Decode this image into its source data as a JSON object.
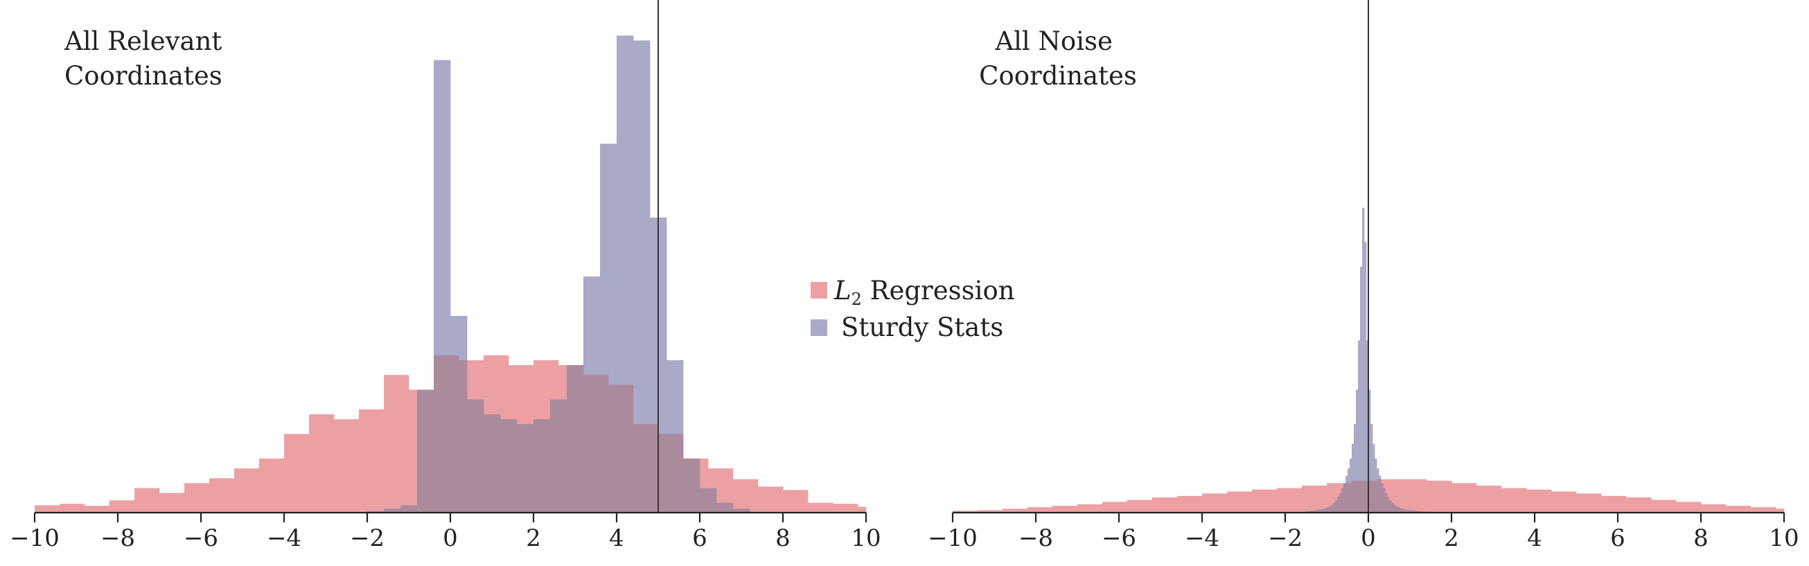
{
  "chart_data": [
    {
      "type": "bar",
      "panel": "left",
      "title_lines": [
        "All Relevant",
        "Coordinates"
      ],
      "xlabel": "",
      "ylabel": "",
      "xlim": [
        -10,
        10
      ],
      "ylim": [
        0,
        1
      ],
      "x_ticks": [
        -10,
        -8,
        -6,
        -4,
        -2,
        0,
        2,
        4,
        6,
        8,
        10
      ],
      "x_tick_labels": [
        "−10",
        "−8",
        "−6",
        "−4",
        "−2",
        "0",
        "2",
        "4",
        "6",
        "8",
        "10"
      ],
      "reference_x": 5,
      "grid": false,
      "series": [
        {
          "name": "L2 Regression",
          "color": "#eda0a3",
          "bin_width": 0.6,
          "bin_start": -10,
          "values": [
            0.015,
            0.018,
            0.014,
            0.025,
            0.05,
            0.04,
            0.06,
            0.07,
            0.09,
            0.11,
            0.16,
            0.2,
            0.19,
            0.21,
            0.28,
            0.25,
            0.32,
            0.31,
            0.32,
            0.3,
            0.31,
            0.3,
            0.28,
            0.26,
            0.18,
            0.16,
            0.11,
            0.09,
            0.068,
            0.053,
            0.046,
            0.02,
            0.018,
            0.012
          ]
        },
        {
          "name": "Sturdy Stats",
          "color": "#a9a9c8",
          "bin_width": 0.4,
          "bin_start": -2,
          "values": [
            0.003,
            0.008,
            0.015,
            0.25,
            0.92,
            0.4,
            0.23,
            0.2,
            0.19,
            0.18,
            0.19,
            0.23,
            0.3,
            0.48,
            0.75,
            0.97,
            0.96,
            0.6,
            0.31,
            0.11,
            0.05,
            0.02,
            0.008
          ]
        }
      ],
      "legend": {
        "placement": "right",
        "items": [
          "L2 Regression",
          "Sturdy Stats"
        ]
      }
    },
    {
      "type": "bar",
      "panel": "right",
      "title_lines": [
        "All Noise",
        "Coordinates"
      ],
      "xlabel": "",
      "ylabel": "",
      "xlim": [
        -10,
        10
      ],
      "ylim": [
        0,
        1
      ],
      "x_ticks": [
        -10,
        -8,
        -6,
        -4,
        -2,
        0,
        2,
        4,
        6,
        8,
        10
      ],
      "x_tick_labels": [
        "−10",
        "−8",
        "−6",
        "−4",
        "−2",
        "0",
        "2",
        "4",
        "6",
        "8",
        "10"
      ],
      "reference_x": 0,
      "grid": false,
      "series": [
        {
          "name": "L2 Regression",
          "color": "#eda0a3",
          "bin_width": 0.6,
          "bin_start": -10,
          "values": [
            0.004,
            0.005,
            0.008,
            0.011,
            0.014,
            0.017,
            0.022,
            0.026,
            0.031,
            0.034,
            0.039,
            0.043,
            0.047,
            0.05,
            0.055,
            0.06,
            0.065,
            0.068,
            0.068,
            0.065,
            0.06,
            0.055,
            0.05,
            0.047,
            0.043,
            0.039,
            0.034,
            0.031,
            0.026,
            0.022,
            0.017,
            0.014,
            0.011,
            0.008
          ]
        },
        {
          "name": "Sturdy Stats",
          "color": "#a9a9c8",
          "bin_width": 0.05,
          "bin_start": -1.5,
          "values": [
            0.003,
            0.003,
            0.004,
            0.004,
            0.005,
            0.005,
            0.006,
            0.007,
            0.008,
            0.009,
            0.011,
            0.013,
            0.016,
            0.02,
            0.025,
            0.032,
            0.04,
            0.05,
            0.06,
            0.075,
            0.09,
            0.11,
            0.14,
            0.18,
            0.25,
            0.35,
            0.5,
            0.62,
            0.55,
            0.35,
            0.25,
            0.18,
            0.14,
            0.11,
            0.09,
            0.075,
            0.06,
            0.05,
            0.04,
            0.032,
            0.025,
            0.02,
            0.016,
            0.013,
            0.011,
            0.009,
            0.008,
            0.007,
            0.006,
            0.005,
            0.005,
            0.004,
            0.004,
            0.003,
            0.003,
            0.003,
            0.002,
            0.002,
            0.002,
            0.002
          ]
        }
      ],
      "legend": null
    }
  ],
  "legend": {
    "items": [
      {
        "label_main": "L",
        "label_sub": "2",
        "label_rest": " Regression",
        "color": "#eda0a3"
      },
      {
        "label_main": "Sturdy Stats",
        "label_sub": "",
        "label_rest": "",
        "color": "#a9a9c8"
      }
    ]
  }
}
